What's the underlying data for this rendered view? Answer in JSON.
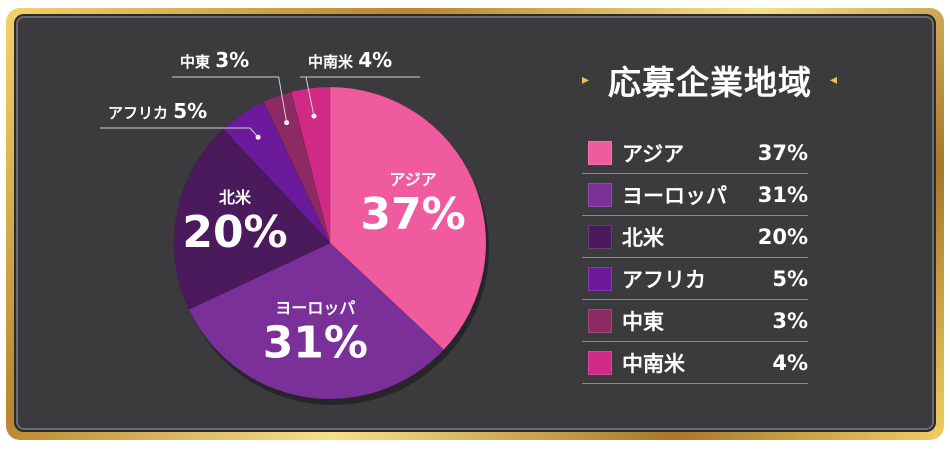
{
  "colors": {
    "asia": "#f05ba0",
    "europe": "#7b2f98",
    "north_america": "#4a1a5c",
    "africa": "#6a1a9a",
    "middle_east": "#8e2a63",
    "latin_america": "#d02a86",
    "panel": "#3b3b3e",
    "accent": "#e9c24a"
  },
  "chart_data": {
    "type": "pie",
    "title": "応募企業地域",
    "slices": [
      {
        "label": "アジア",
        "value": 37,
        "display": "37%",
        "color_key": "asia"
      },
      {
        "label": "ヨーロッパ",
        "value": 31,
        "display": "31%",
        "color_key": "europe"
      },
      {
        "label": "北米",
        "value": 20,
        "display": "20%",
        "color_key": "north_america"
      },
      {
        "label": "アフリカ",
        "value": 5,
        "display": "5%",
        "color_key": "africa"
      },
      {
        "label": "中東",
        "value": 3,
        "display": "3%",
        "color_key": "middle_east"
      },
      {
        "label": "中南米",
        "value": 4,
        "display": "4%",
        "color_key": "latin_america"
      }
    ],
    "legend_placement": "right"
  },
  "title_arrow_left": "▸",
  "title_arrow_right": "◂"
}
